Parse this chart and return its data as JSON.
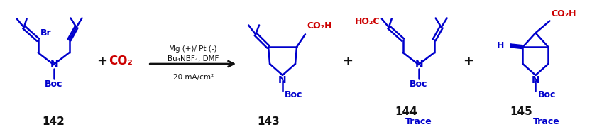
{
  "bg_color": "#ffffff",
  "blue": "#0000CC",
  "red": "#CC0000",
  "black": "#111111",
  "figsize": [
    8.34,
    1.86
  ],
  "dpi": 100,
  "lw": 1.8,
  "lw_thick": 2.2,
  "wedge_lw": 4.5,
  "labels": {
    "142": "142",
    "143": "143",
    "144": "144",
    "145": "145",
    "Br": "Br",
    "N": "N",
    "Boc": "Boc",
    "H": "H",
    "CO2H": "CO₂H",
    "HO2C": "HO₂C",
    "CO2": "CO₂",
    "plus": "+",
    "trace": "Trace",
    "arrow1": "Mg (+)/ Pt (-)",
    "arrow2": "Bu₄NBF₄, DMF",
    "arrow3": "20 mA/cm²"
  },
  "xlim": [
    0,
    834
  ],
  "ylim": [
    0,
    186
  ]
}
